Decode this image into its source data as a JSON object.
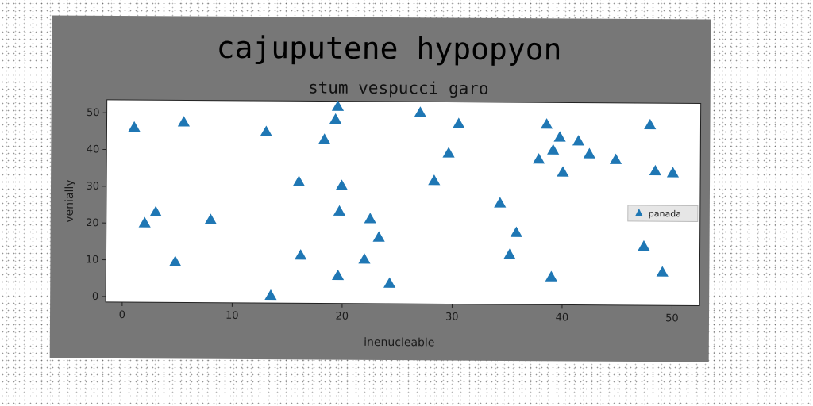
{
  "chart_data": {
    "type": "scatter",
    "title": "cajuputene hypopyon",
    "subtitle": "stum vespucci garo",
    "xlabel": "inenucleable",
    "ylabel": "venially",
    "xlim": [
      -1.5,
      52.5
    ],
    "ylim": [
      -1.5,
      53.5
    ],
    "xticks": [
      0,
      10,
      20,
      30,
      40,
      50
    ],
    "yticks": [
      0,
      10,
      20,
      30,
      40,
      50
    ],
    "grid": false,
    "legend_position": "center-right",
    "series": [
      {
        "name": "panada",
        "color": "#1f77b4",
        "marker": "triangle",
        "points": [
          [
            1,
            46
          ],
          [
            2,
            20
          ],
          [
            3,
            23
          ],
          [
            4.8,
            9.5
          ],
          [
            5.5,
            47.5
          ],
          [
            8,
            21
          ],
          [
            13,
            45
          ],
          [
            13.5,
            0.5
          ],
          [
            16,
            31.5
          ],
          [
            16.2,
            11.5
          ],
          [
            18.3,
            43
          ],
          [
            19.3,
            48.5
          ],
          [
            19.5,
            52
          ],
          [
            19.6,
            6
          ],
          [
            19.7,
            23.5
          ],
          [
            19.9,
            30.5
          ],
          [
            22,
            10.5
          ],
          [
            22.5,
            21.5
          ],
          [
            23.3,
            16.5
          ],
          [
            24.3,
            4
          ],
          [
            27,
            50.5
          ],
          [
            28.3,
            32
          ],
          [
            29.6,
            39.5
          ],
          [
            30.5,
            47.5
          ],
          [
            34.3,
            26
          ],
          [
            35.2,
            12
          ],
          [
            35.8,
            18
          ],
          [
            37.8,
            38
          ],
          [
            38.5,
            47.5
          ],
          [
            39,
            6
          ],
          [
            39.1,
            40.5
          ],
          [
            39.7,
            44
          ],
          [
            40,
            34.5
          ],
          [
            41.4,
            43
          ],
          [
            42.4,
            39.5
          ],
          [
            44.8,
            38
          ],
          [
            47.4,
            14.5
          ],
          [
            47.9,
            47.5
          ],
          [
            48.4,
            35
          ],
          [
            49.1,
            7.5
          ],
          [
            50,
            34.5
          ]
        ]
      }
    ]
  }
}
